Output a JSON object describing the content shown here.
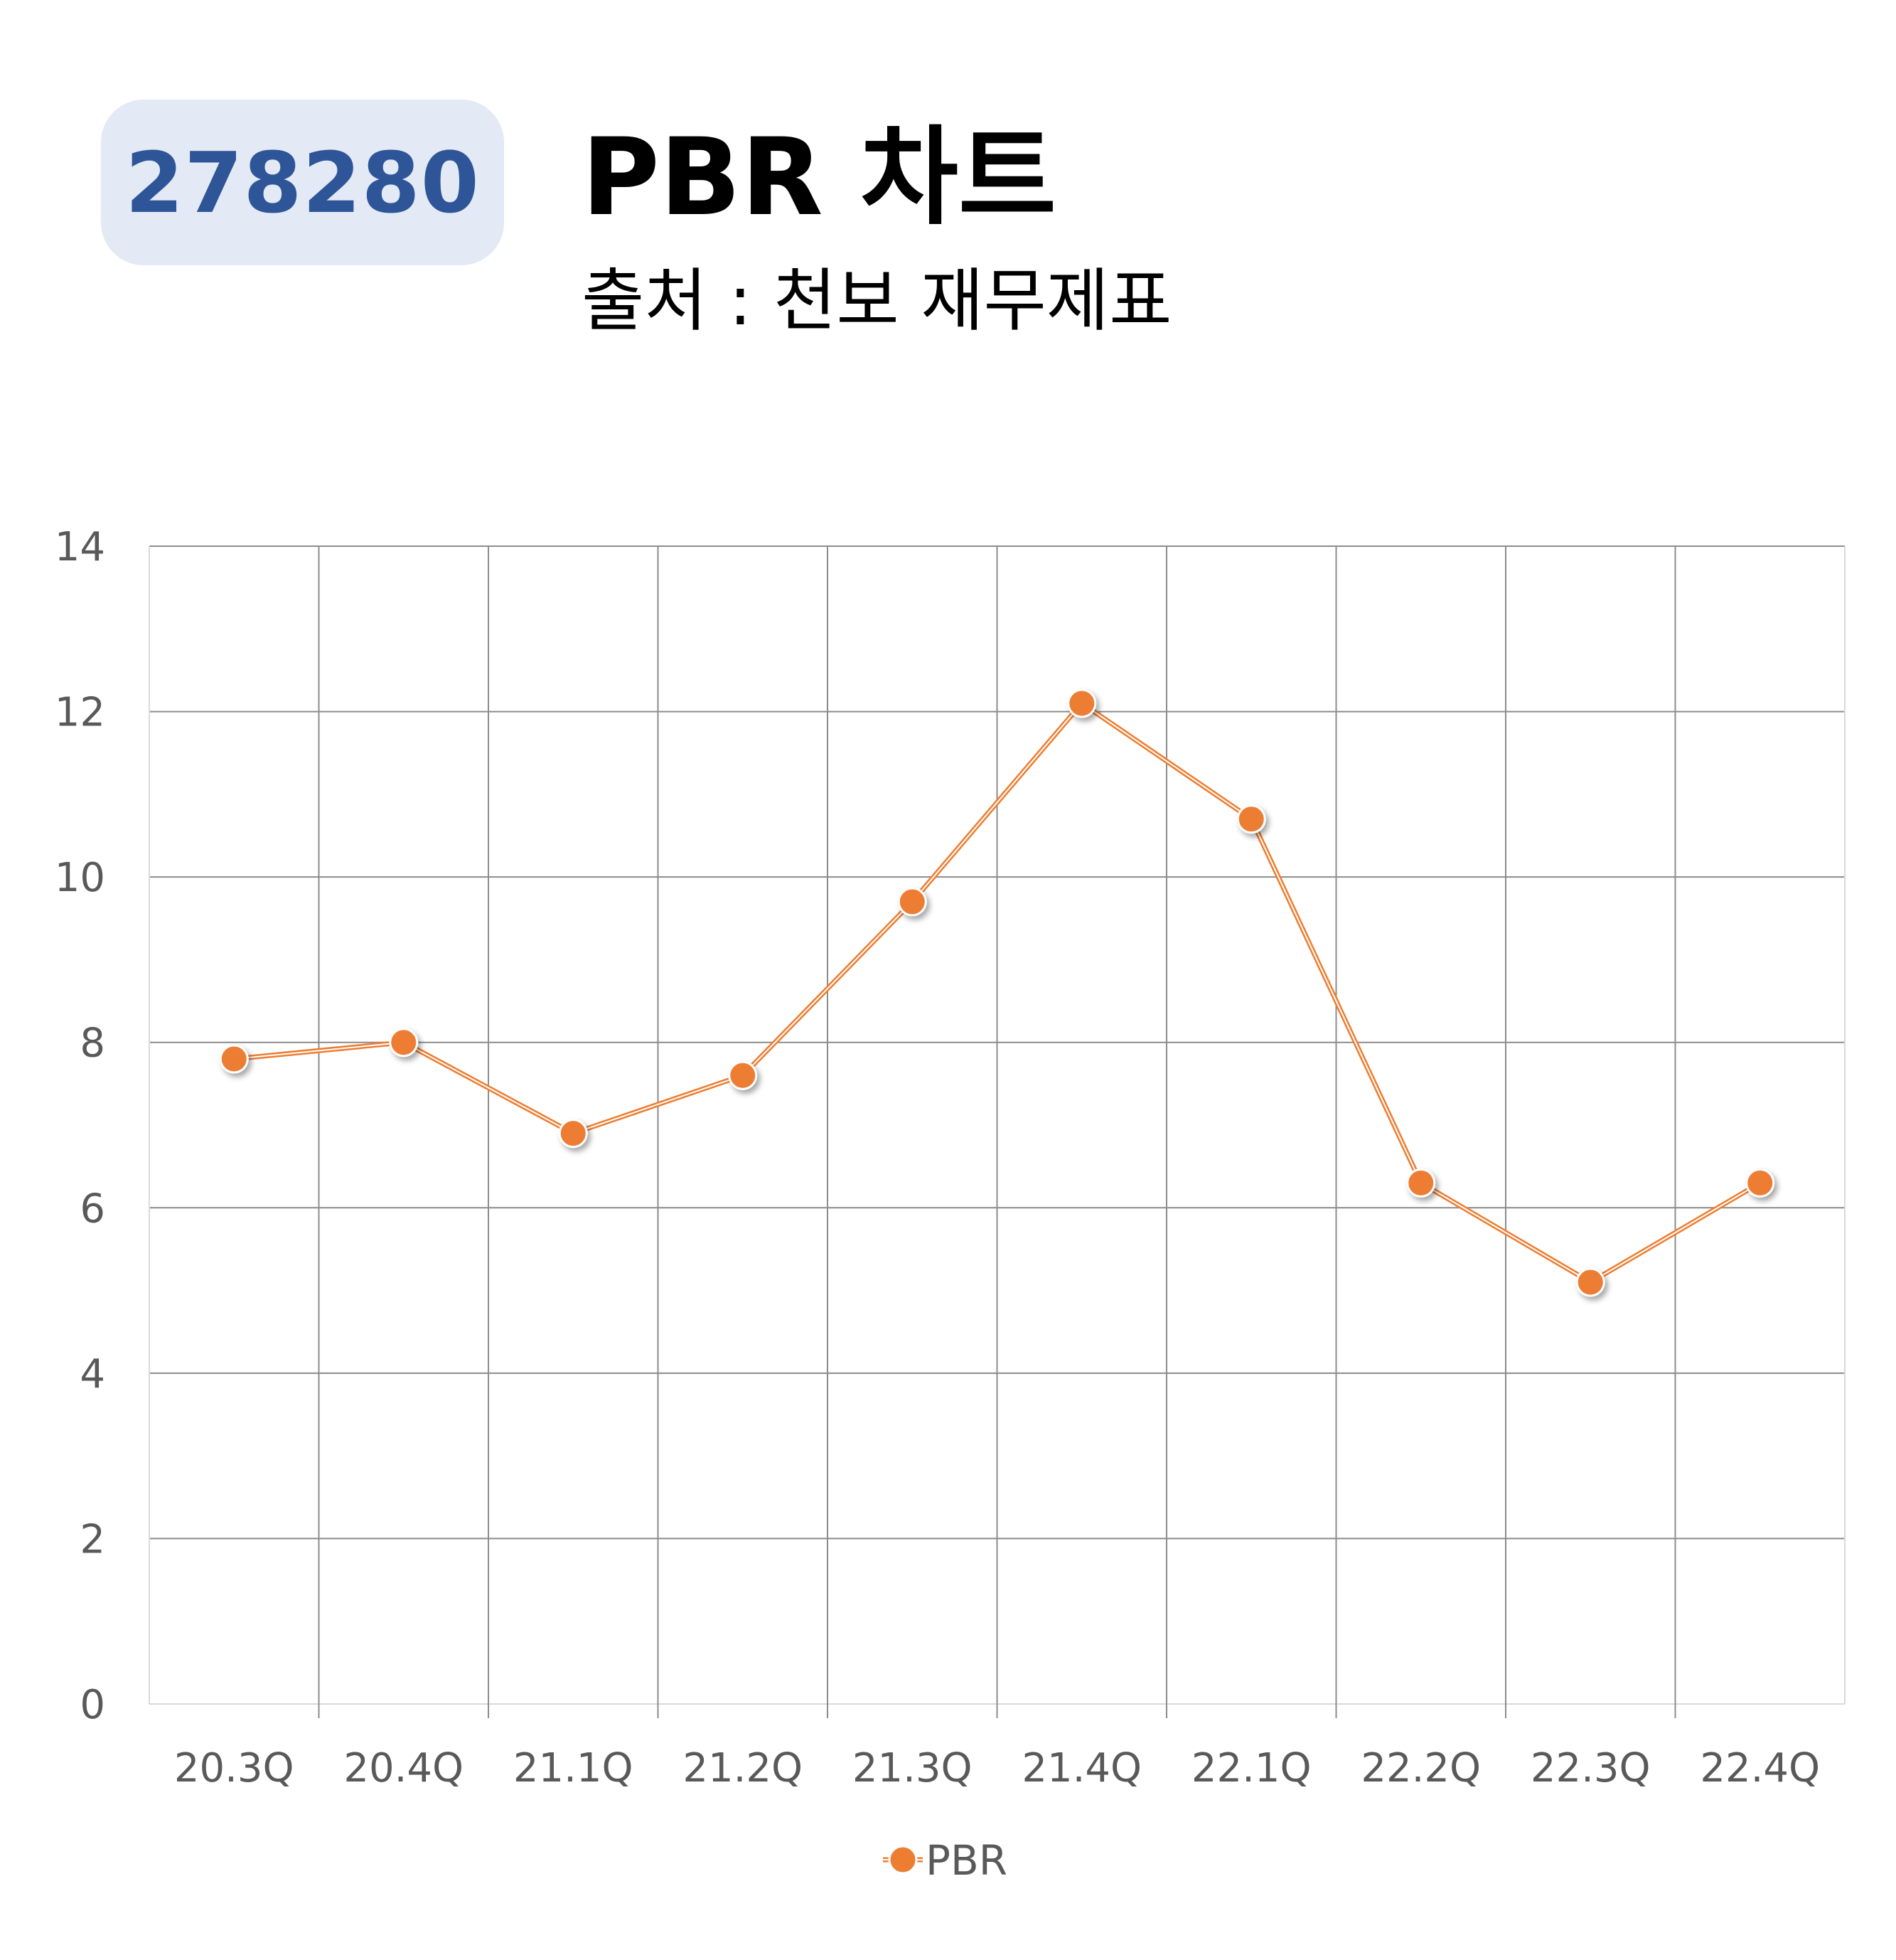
{
  "header": {
    "code": "278280",
    "title": "PBR 차트",
    "subtitle": "출처 : 천보 재무제표"
  },
  "colors": {
    "badge_bg": "#e3e9f5",
    "badge_text": "#2e5597",
    "series": "#ed7d31",
    "grid": "#8c8c8c",
    "axis_text": "#595959"
  },
  "chart_data": {
    "type": "line",
    "categories": [
      "20.3Q",
      "20.4Q",
      "21.1Q",
      "21.2Q",
      "21.3Q",
      "21.4Q",
      "22.1Q",
      "22.2Q",
      "22.3Q",
      "22.4Q"
    ],
    "series": [
      {
        "name": "PBR",
        "values": [
          7.8,
          8.0,
          6.9,
          7.6,
          9.7,
          12.1,
          10.7,
          6.3,
          5.1,
          6.3
        ]
      }
    ],
    "ylim": [
      0,
      14
    ],
    "yticks": [
      "0",
      "2",
      "4",
      "6",
      "8",
      "10",
      "12",
      "14"
    ],
    "grid": true,
    "legend": "bottom",
    "markers": true
  }
}
